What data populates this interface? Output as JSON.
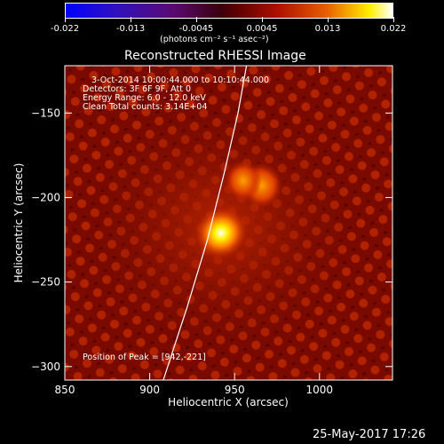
{
  "chart_data": {
    "type": "heatmap",
    "title": "Reconstructed RHESSI Image",
    "xlabel": "Heliocentric X (arcsec)",
    "ylabel": "Heliocentric Y (arcsec)",
    "xlim": [
      850,
      1043
    ],
    "ylim": [
      -308,
      -122
    ],
    "xticks": [
      850,
      900,
      950,
      1000
    ],
    "yticks": [
      -300,
      -250,
      -200,
      -150
    ],
    "colorbar": {
      "min": -0.022,
      "max": 0.022,
      "ticks": [
        "-0.022",
        "-0.013",
        "-0.0045",
        "0.0045",
        "0.013",
        "0.022"
      ],
      "label": "(photons cm⁻² s⁻¹ asec⁻²)"
    },
    "info_lines": [
      "3-Oct-2014 10:00:44.000 to 10:10:44.000",
      "Detectors: 3F 6F 9F, Att 0",
      "Energy Range: 6.0 - 12.0 keV",
      "Clean     Total counts: 3.14E+04"
    ],
    "peak_text": "Position of Peak = [942,-221]",
    "peak": [
      942,
      -221
    ],
    "sources": [
      {
        "x": 942,
        "y": -221,
        "peak": 0.022,
        "sigma": 6.5
      },
      {
        "x": 966,
        "y": -193,
        "peak": 0.011,
        "sigma": 5.0
      },
      {
        "x": 955,
        "y": -190,
        "peak": 0.008,
        "sigma": 4.5
      }
    ],
    "limb_curve": [
      [
        908,
        -308
      ],
      [
        922,
        -265
      ],
      [
        934,
        -225
      ],
      [
        944,
        -185
      ],
      [
        952,
        -150
      ],
      [
        957,
        -122
      ]
    ],
    "date_stamp": "25-May-2017 17:26"
  }
}
